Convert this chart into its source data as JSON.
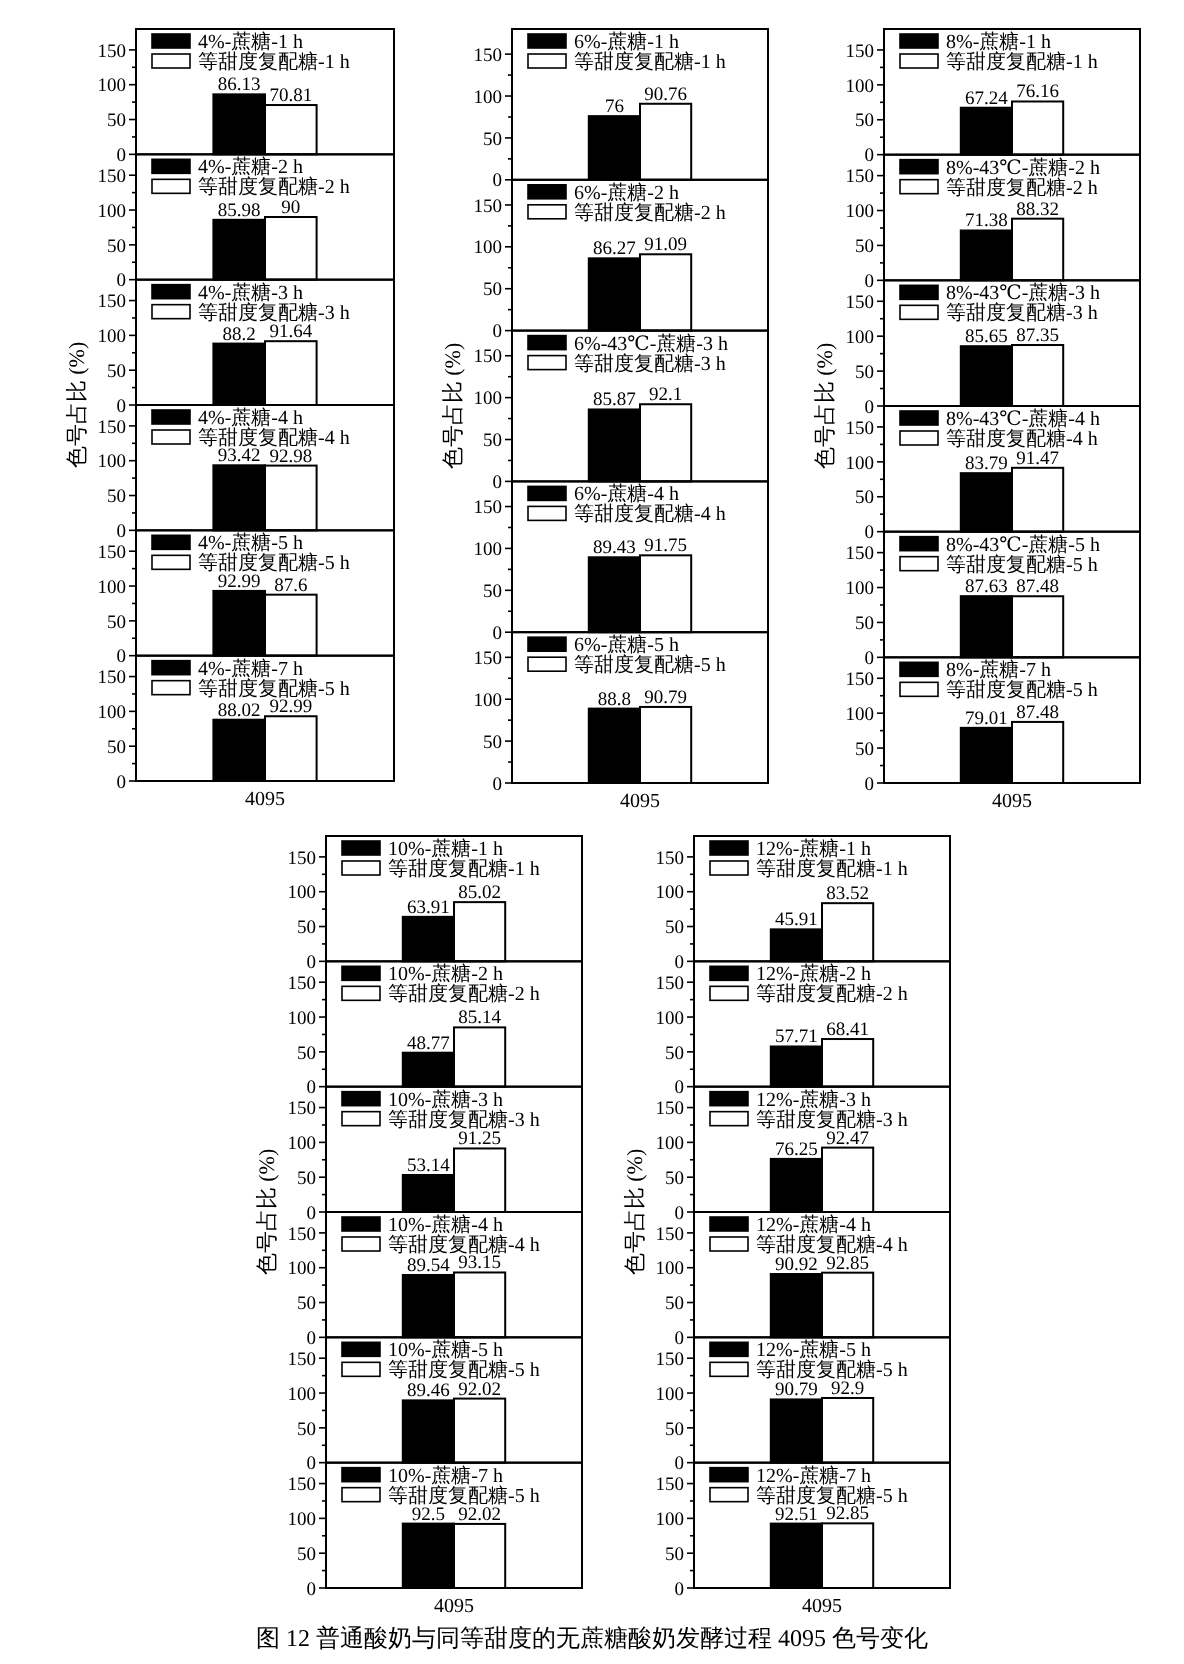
{
  "chart_data": [
    {
      "type": "bar",
      "categories": [
        "4095"
      ],
      "series": [
        {
          "name": "4%-蔗糖-1 h",
          "color": "#000000",
          "values": [
            86.13
          ]
        },
        {
          "name": "等甜度复配糖-1 h",
          "color": "#ffffff",
          "values": [
            70.81
          ]
        }
      ],
      "ylim": [
        0,
        180
      ],
      "yticks": [
        0,
        50,
        100,
        150,
        {
          "value": 25,
          "label": null
        },
        {
          "value": 75,
          "label": null
        },
        {
          "value": 125,
          "label": null
        }
      ],
      "legend": "top left",
      "data_labels": true,
      "tick_labels": "y"
    },
    {
      "type": "bar",
      "categories": [
        "4095"
      ],
      "series": [
        {
          "name": "4%-蔗糖-2 h",
          "color": "#000000",
          "values": [
            85.98
          ]
        },
        {
          "name": "等甜度复配糖-2 h",
          "color": "#ffffff",
          "values": [
            90
          ]
        }
      ],
      "ylim": [
        0,
        180
      ],
      "yticks": [
        0,
        50,
        100,
        150,
        {
          "value": 25,
          "label": null
        },
        {
          "value": 75,
          "label": null
        },
        {
          "value": 125,
          "label": null
        }
      ],
      "legend": "top left",
      "data_labels": true,
      "tick_labels": "y"
    },
    {
      "type": "bar",
      "categories": [
        "4095"
      ],
      "series": [
        {
          "name": "4%-蔗糖-3 h",
          "color": "#000000",
          "values": [
            88.2
          ]
        },
        {
          "name": "等甜度复配糖-3 h",
          "color": "#ffffff",
          "values": [
            91.64
          ]
        }
      ],
      "ylim": [
        0,
        180
      ],
      "yticks": [
        0,
        50,
        100,
        150,
        {
          "value": 25,
          "label": null
        },
        {
          "value": 75,
          "label": null
        },
        {
          "value": 125,
          "label": null
        }
      ],
      "legend": "top left",
      "data_labels": true,
      "tick_labels": "y",
      "ylabel": "色号占比 (%)"
    },
    {
      "type": "bar",
      "categories": [
        "4095"
      ],
      "series": [
        {
          "name": "4%-蔗糖-4 h",
          "color": "#000000",
          "values": [
            93.42
          ]
        },
        {
          "name": "等甜度复配糖-4 h",
          "color": "#ffffff",
          "values": [
            92.98
          ]
        }
      ],
      "ylim": [
        0,
        180
      ],
      "yticks": [
        0,
        50,
        100,
        150,
        {
          "value": 25,
          "label": null
        },
        {
          "value": 75,
          "label": null
        },
        {
          "value": 125,
          "label": null
        }
      ],
      "legend": "top left",
      "data_labels": true,
      "tick_labels": "y"
    },
    {
      "type": "bar",
      "categories": [
        "4095"
      ],
      "series": [
        {
          "name": "4%-蔗糖-5 h",
          "color": "#000000",
          "values": [
            92.99
          ]
        },
        {
          "name": "等甜度复配糖-5 h",
          "color": "#ffffff",
          "values": [
            87.6
          ]
        }
      ],
      "ylim": [
        0,
        180
      ],
      "yticks": [
        0,
        50,
        100,
        150,
        {
          "value": 25,
          "label": null
        },
        {
          "value": 75,
          "label": null
        },
        {
          "value": 125,
          "label": null
        }
      ],
      "legend": "top left",
      "data_labels": true,
      "tick_labels": "y"
    },
    {
      "type": "bar",
      "categories": [
        "4095"
      ],
      "series": [
        {
          "name": "4%-蔗糖-7 h",
          "color": "#000000",
          "values": [
            88.02
          ]
        },
        {
          "name": "等甜度复配糖-5 h",
          "color": "#ffffff",
          "values": [
            92.99
          ]
        }
      ],
      "ylim": [
        0,
        180
      ],
      "yticks": [
        0,
        50,
        100,
        150,
        {
          "value": 25,
          "label": null
        },
        {
          "value": 75,
          "label": null
        },
        {
          "value": 125,
          "label": null
        }
      ],
      "legend": "top left",
      "data_labels": true
    },
    {
      "type": "bar",
      "categories": [
        "4095"
      ],
      "series": [
        {
          "name": "6%-蔗糖-1 h",
          "color": "#000000",
          "values": [
            76
          ]
        },
        {
          "name": "等甜度复配糖-1 h",
          "color": "#ffffff",
          "values": [
            90.76
          ]
        }
      ],
      "ylim": [
        0,
        180
      ],
      "yticks": [
        0,
        50,
        100,
        150,
        {
          "value": 25,
          "label": null
        },
        {
          "value": 75,
          "label": null
        },
        {
          "value": 125,
          "label": null
        }
      ],
      "legend": "top left",
      "data_labels": true,
      "tick_labels": "y"
    },
    {
      "type": "bar",
      "categories": [
        "4095"
      ],
      "series": [
        {
          "name": "6%-蔗糖-2 h",
          "color": "#000000",
          "values": [
            86.27
          ]
        },
        {
          "name": "等甜度复配糖-2 h",
          "color": "#ffffff",
          "values": [
            91.09
          ]
        }
      ],
      "ylim": [
        0,
        180
      ],
      "yticks": [
        0,
        50,
        100,
        150,
        {
          "value": 25,
          "label": null
        },
        {
          "value": 75,
          "label": null
        },
        {
          "value": 125,
          "label": null
        }
      ],
      "legend": "top left",
      "data_labels": true,
      "tick_labels": "y"
    },
    {
      "type": "bar",
      "categories": [
        "4095"
      ],
      "series": [
        {
          "name": "6%-43℃-蔗糖-3 h",
          "color": "#000000",
          "values": [
            85.87
          ]
        },
        {
          "name": "等甜度复配糖-3 h",
          "color": "#ffffff",
          "values": [
            92.1
          ]
        }
      ],
      "ylim": [
        0,
        180
      ],
      "yticks": [
        0,
        50,
        100,
        150,
        {
          "value": 25,
          "label": null
        },
        {
          "value": 75,
          "label": null
        },
        {
          "value": 125,
          "label": null
        }
      ],
      "legend": "top left",
      "data_labels": true,
      "tick_labels": "y",
      "ylabel": "色号占比 (%)"
    },
    {
      "type": "bar",
      "categories": [
        "4095"
      ],
      "series": [
        {
          "name": "6%-蔗糖-4 h",
          "color": "#000000",
          "values": [
            89.43
          ]
        },
        {
          "name": "等甜度复配糖-4 h",
          "color": "#ffffff",
          "values": [
            91.75
          ]
        }
      ],
      "ylim": [
        0,
        180
      ],
      "yticks": [
        0,
        50,
        100,
        150,
        {
          "value": 25,
          "label": null
        },
        {
          "value": 75,
          "label": null
        },
        {
          "value": 125,
          "label": null
        }
      ],
      "legend": "top left",
      "data_labels": true,
      "tick_labels": "y"
    },
    {
      "type": "bar",
      "categories": [
        "4095"
      ],
      "series": [
        {
          "name": "6%-蔗糖-5 h",
          "color": "#000000",
          "values": [
            88.8
          ]
        },
        {
          "name": "等甜度复配糖-5 h",
          "color": "#ffffff",
          "values": [
            90.79
          ]
        }
      ],
      "ylim": [
        0,
        180
      ],
      "yticks": [
        0,
        50,
        100,
        150,
        {
          "value": 25,
          "label": null
        },
        {
          "value": 75,
          "label": null
        },
        {
          "value": 125,
          "label": null
        }
      ],
      "legend": "top left",
      "data_labels": true
    },
    {
      "type": "bar",
      "categories": [
        "4095"
      ],
      "series": [
        {
          "name": "8%-蔗糖-1 h",
          "color": "#000000",
          "values": [
            67.24
          ]
        },
        {
          "name": "等甜度复配糖-1 h",
          "color": "#ffffff",
          "values": [
            76.16
          ]
        }
      ],
      "ylim": [
        0,
        180
      ],
      "yticks": [
        0,
        50,
        100,
        150,
        {
          "value": 25,
          "label": null
        },
        {
          "value": 75,
          "label": null
        },
        {
          "value": 125,
          "label": null
        }
      ],
      "legend": "top left",
      "data_labels": true,
      "tick_labels": "y"
    },
    {
      "type": "bar",
      "categories": [
        "4095"
      ],
      "series": [
        {
          "name": "8%-43℃-蔗糖-2 h",
          "color": "#000000",
          "values": [
            71.38
          ]
        },
        {
          "name": "等甜度复配糖-2 h",
          "color": "#ffffff",
          "values": [
            88.32
          ]
        }
      ],
      "ylim": [
        0,
        180
      ],
      "yticks": [
        0,
        50,
        100,
        150,
        {
          "value": 25,
          "label": null
        },
        {
          "value": 75,
          "label": null
        },
        {
          "value": 125,
          "label": null
        }
      ],
      "legend": "top left",
      "data_labels": true,
      "tick_labels": "y"
    },
    {
      "type": "bar",
      "categories": [
        "4095"
      ],
      "series": [
        {
          "name": "8%-43℃-蔗糖-3 h",
          "color": "#000000",
          "values": [
            85.65
          ]
        },
        {
          "name": "等甜度复配糖-3 h",
          "color": "#ffffff",
          "values": [
            87.35
          ]
        }
      ],
      "ylim": [
        0,
        180
      ],
      "yticks": [
        0,
        50,
        100,
        150,
        {
          "value": 25,
          "label": null
        },
        {
          "value": 75,
          "label": null
        },
        {
          "value": 125,
          "label": null
        }
      ],
      "legend": "top left",
      "data_labels": true,
      "tick_labels": "y",
      "ylabel": "色号占比 (%)"
    },
    {
      "type": "bar",
      "categories": [
        "4095"
      ],
      "series": [
        {
          "name": "8%-43℃-蔗糖-4 h",
          "color": "#000000",
          "values": [
            83.79
          ]
        },
        {
          "name": "等甜度复配糖-4 h",
          "color": "#ffffff",
          "values": [
            91.47
          ]
        }
      ],
      "ylim": [
        0,
        180
      ],
      "yticks": [
        0,
        50,
        100,
        150,
        {
          "value": 25,
          "label": null
        },
        {
          "value": 75,
          "label": null
        },
        {
          "value": 125,
          "label": null
        }
      ],
      "legend": "top left",
      "data_labels": true,
      "tick_labels": "y"
    },
    {
      "type": "bar",
      "categories": [
        "4095"
      ],
      "series": [
        {
          "name": "8%-43℃-蔗糖-5 h",
          "color": "#000000",
          "values": [
            87.63
          ]
        },
        {
          "name": "等甜度复配糖-5 h",
          "color": "#ffffff",
          "values": [
            87.48
          ]
        }
      ],
      "ylim": [
        0,
        180
      ],
      "yticks": [
        0,
        50,
        100,
        150,
        {
          "value": 25,
          "label": null
        },
        {
          "value": 75,
          "label": null
        },
        {
          "value": 125,
          "label": null
        }
      ],
      "legend": "top left",
      "data_labels": true,
      "tick_labels": "y"
    },
    {
      "type": "bar",
      "categories": [
        "4095"
      ],
      "series": [
        {
          "name": "8%-蔗糖-7 h",
          "color": "#000000",
          "values": [
            79.01
          ]
        },
        {
          "name": "等甜度复配糖-5 h",
          "color": "#ffffff",
          "values": [
            87.48
          ]
        }
      ],
      "ylim": [
        0,
        180
      ],
      "yticks": [
        0,
        50,
        100,
        150,
        {
          "value": 25,
          "label": null
        },
        {
          "value": 75,
          "label": null
        },
        {
          "value": 125,
          "label": null
        }
      ],
      "legend": "top left",
      "data_labels": true
    },
    {
      "type": "bar",
      "categories": [
        "4095"
      ],
      "series": [
        {
          "name": "10%-蔗糖-1 h",
          "color": "#000000",
          "values": [
            63.91
          ]
        },
        {
          "name": "等甜度复配糖-1 h",
          "color": "#ffffff",
          "values": [
            85.02
          ]
        }
      ],
      "ylim": [
        0,
        180
      ],
      "yticks": [
        0,
        50,
        100,
        150,
        {
          "value": 25,
          "label": null
        },
        {
          "value": 75,
          "label": null
        },
        {
          "value": 125,
          "label": null
        }
      ],
      "legend": "top left",
      "data_labels": true,
      "tick_labels": "y"
    },
    {
      "type": "bar",
      "categories": [
        "4095"
      ],
      "series": [
        {
          "name": "10%-蔗糖-2 h",
          "color": "#000000",
          "values": [
            48.77
          ]
        },
        {
          "name": "等甜度复配糖-2 h",
          "color": "#ffffff",
          "values": [
            85.14
          ]
        }
      ],
      "ylim": [
        0,
        180
      ],
      "yticks": [
        0,
        50,
        100,
        150,
        {
          "value": 25,
          "label": null
        },
        {
          "value": 75,
          "label": null
        },
        {
          "value": 125,
          "label": null
        }
      ],
      "legend": "top left",
      "data_labels": true,
      "tick_labels": "y"
    },
    {
      "type": "bar",
      "categories": [
        "4095"
      ],
      "series": [
        {
          "name": "10%-蔗糖-3 h",
          "color": "#000000",
          "values": [
            53.14
          ]
        },
        {
          "name": "等甜度复配糖-3 h",
          "color": "#ffffff",
          "values": [
            91.25
          ]
        }
      ],
      "ylim": [
        0,
        180
      ],
      "yticks": [
        0,
        50,
        100,
        150,
        {
          "value": 25,
          "label": null
        },
        {
          "value": 75,
          "label": null
        },
        {
          "value": 125,
          "label": null
        }
      ],
      "legend": "top left",
      "data_labels": true,
      "tick_labels": "y",
      "ylabel": "色号占比 (%)"
    },
    {
      "type": "bar",
      "categories": [
        "4095"
      ],
      "series": [
        {
          "name": "10%-蔗糖-4 h",
          "color": "#000000",
          "values": [
            89.54
          ]
        },
        {
          "name": "等甜度复配糖-4 h",
          "color": "#ffffff",
          "values": [
            93.15
          ]
        }
      ],
      "ylim": [
        0,
        180
      ],
      "yticks": [
        0,
        50,
        100,
        150,
        {
          "value": 25,
          "label": null
        },
        {
          "value": 75,
          "label": null
        },
        {
          "value": 125,
          "label": null
        }
      ],
      "legend": "top left",
      "data_labels": true,
      "tick_labels": "y"
    },
    {
      "type": "bar",
      "categories": [
        "4095"
      ],
      "series": [
        {
          "name": "10%-蔗糖-5 h",
          "color": "#000000",
          "values": [
            89.46
          ]
        },
        {
          "name": "等甜度复配糖-5 h",
          "color": "#ffffff",
          "values": [
            92.02
          ]
        }
      ],
      "ylim": [
        0,
        180
      ],
      "yticks": [
        0,
        50,
        100,
        150,
        {
          "value": 25,
          "label": null
        },
        {
          "value": 75,
          "label": null
        },
        {
          "value": 125,
          "label": null
        }
      ],
      "legend": "top left",
      "data_labels": true,
      "tick_labels": "y"
    },
    {
      "type": "bar",
      "categories": [
        "4095"
      ],
      "series": [
        {
          "name": "10%-蔗糖-7 h",
          "color": "#000000",
          "values": [
            92.5
          ]
        },
        {
          "name": "等甜度复配糖-5 h",
          "color": "#ffffff",
          "values": [
            92.02
          ]
        }
      ],
      "ylim": [
        0,
        180
      ],
      "yticks": [
        0,
        50,
        100,
        150,
        {
          "value": 25,
          "label": null
        },
        {
          "value": 75,
          "label": null
        },
        {
          "value": 125,
          "label": null
        }
      ],
      "legend": "top left",
      "data_labels": true
    },
    {
      "type": "bar",
      "categories": [
        "4095"
      ],
      "series": [
        {
          "name": "12%-蔗糖-1 h",
          "color": "#000000",
          "values": [
            45.91
          ]
        },
        {
          "name": "等甜度复配糖-1 h",
          "color": "#ffffff",
          "values": [
            83.52
          ]
        }
      ],
      "ylim": [
        0,
        180
      ],
      "yticks": [
        0,
        50,
        100,
        150,
        {
          "value": 25,
          "label": null
        },
        {
          "value": 75,
          "label": null
        },
        {
          "value": 125,
          "label": null
        }
      ],
      "legend": "top left",
      "data_labels": true,
      "tick_labels": "y"
    },
    {
      "type": "bar",
      "categories": [
        "4095"
      ],
      "series": [
        {
          "name": "12%-蔗糖-2 h",
          "color": "#000000",
          "values": [
            57.71
          ]
        },
        {
          "name": "等甜度复配糖-2 h",
          "color": "#ffffff",
          "values": [
            68.41
          ]
        }
      ],
      "ylim": [
        0,
        180
      ],
      "yticks": [
        0,
        50,
        100,
        150,
        {
          "value": 25,
          "label": null
        },
        {
          "value": 75,
          "label": null
        },
        {
          "value": 125,
          "label": null
        }
      ],
      "legend": "top left",
      "data_labels": true,
      "tick_labels": "y"
    },
    {
      "type": "bar",
      "categories": [
        "4095"
      ],
      "series": [
        {
          "name": "12%-蔗糖-3 h",
          "color": "#000000",
          "values": [
            76.25
          ]
        },
        {
          "name": "等甜度复配糖-3 h",
          "color": "#ffffff",
          "values": [
            92.47
          ]
        }
      ],
      "ylim": [
        0,
        180
      ],
      "yticks": [
        0,
        50,
        100,
        150,
        {
          "value": 25,
          "label": null
        },
        {
          "value": 75,
          "label": null
        },
        {
          "value": 125,
          "label": null
        }
      ],
      "legend": "top left",
      "data_labels": true,
      "tick_labels": "y",
      "ylabel": "色号占比 (%)"
    },
    {
      "type": "bar",
      "categories": [
        "4095"
      ],
      "series": [
        {
          "name": "12%-蔗糖-4 h",
          "color": "#000000",
          "values": [
            90.92
          ]
        },
        {
          "name": "等甜度复配糖-4 h",
          "color": "#ffffff",
          "values": [
            92.85
          ]
        }
      ],
      "ylim": [
        0,
        180
      ],
      "yticks": [
        0,
        50,
        100,
        150,
        {
          "value": 25,
          "label": null
        },
        {
          "value": 75,
          "label": null
        },
        {
          "value": 125,
          "label": null
        }
      ],
      "legend": "top left",
      "data_labels": true,
      "tick_labels": "y"
    },
    {
      "type": "bar",
      "categories": [
        "4095"
      ],
      "series": [
        {
          "name": "12%-蔗糖-5 h",
          "color": "#000000",
          "values": [
            90.79
          ]
        },
        {
          "name": "等甜度复配糖-5 h",
          "color": "#ffffff",
          "values": [
            92.9
          ]
        }
      ],
      "ylim": [
        0,
        180
      ],
      "yticks": [
        0,
        50,
        100,
        150,
        {
          "value": 25,
          "label": null
        },
        {
          "value": 75,
          "label": null
        },
        {
          "value": 125,
          "label": null
        }
      ],
      "legend": "top left",
      "data_labels": true,
      "tick_labels": "y"
    },
    {
      "type": "bar",
      "categories": [
        "4095"
      ],
      "series": [
        {
          "name": "12%-蔗糖-7 h",
          "color": "#000000",
          "values": [
            92.51
          ]
        },
        {
          "name": "等甜度复配糖-5 h",
          "color": "#ffffff",
          "values": [
            92.85
          ]
        }
      ],
      "ylim": [
        0,
        180
      ],
      "yticks": [
        0,
        50,
        100,
        150,
        {
          "value": 25,
          "label": null
        },
        {
          "value": 75,
          "label": null
        },
        {
          "value": 125,
          "label": null
        }
      ],
      "legend": "top left",
      "data_labels": true,
      "annotations": [
        "图 12 普通酸奶与同等甜度的无蔗糖酸奶发酵过程 4095 色号变化"
      ]
    }
  ]
}
